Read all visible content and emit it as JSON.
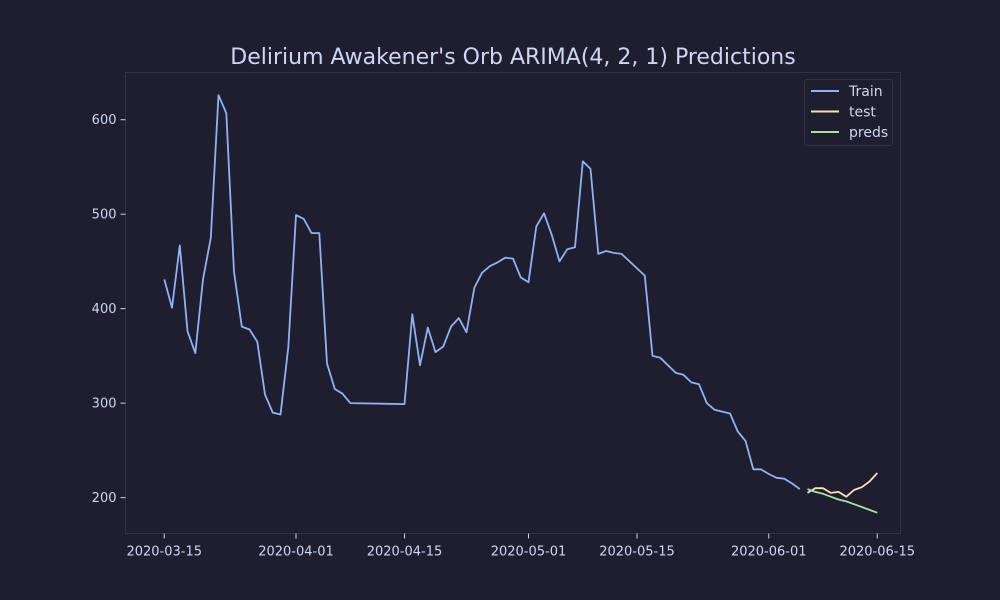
{
  "colors": {
    "background": "#1e1e2e",
    "frame": "#313244",
    "text": "#cdd6f4",
    "legend_bg": "#1e1e2e"
  },
  "chart_data": {
    "type": "line",
    "title": "Delirium Awakener's Orb ARIMA(4, 2, 1) Predictions",
    "xlabel": "",
    "ylabel": "",
    "x_axis": {
      "type": "date",
      "range": [
        "2020-03-10",
        "2020-06-18"
      ],
      "ticks": [
        "2020-03-15",
        "2020-04-01",
        "2020-04-15",
        "2020-05-01",
        "2020-05-15",
        "2020-06-01",
        "2020-06-15"
      ]
    },
    "y_axis": {
      "range": [
        162,
        650
      ],
      "ticks": [
        200,
        300,
        400,
        500,
        600
      ]
    },
    "grid": false,
    "legend_position": "top-right",
    "series": [
      {
        "name": "Train",
        "color": "#89b4fa",
        "points": [
          [
            "2020-03-15",
            431
          ],
          [
            "2020-03-16",
            401
          ],
          [
            "2020-03-17",
            467
          ],
          [
            "2020-03-18",
            376
          ],
          [
            "2020-03-19",
            353
          ],
          [
            "2020-03-20",
            431
          ],
          [
            "2020-03-21",
            475
          ],
          [
            "2020-03-22",
            626
          ],
          [
            "2020-03-23",
            607
          ],
          [
            "2020-03-24",
            439
          ],
          [
            "2020-03-25",
            381
          ],
          [
            "2020-03-26",
            378
          ],
          [
            "2020-03-27",
            365
          ],
          [
            "2020-03-28",
            309
          ],
          [
            "2020-03-29",
            290
          ],
          [
            "2020-03-30",
            288
          ],
          [
            "2020-03-31",
            359
          ],
          [
            "2020-04-01",
            499
          ],
          [
            "2020-04-02",
            495
          ],
          [
            "2020-04-03",
            480
          ],
          [
            "2020-04-04",
            480
          ],
          [
            "2020-04-05",
            342
          ],
          [
            "2020-04-06",
            315
          ],
          [
            "2020-04-07",
            310
          ],
          [
            "2020-04-08",
            300
          ],
          [
            "2020-04-15",
            299
          ],
          [
            "2020-04-16",
            394
          ],
          [
            "2020-04-17",
            340
          ],
          [
            "2020-04-18",
            380
          ],
          [
            "2020-04-19",
            354
          ],
          [
            "2020-04-20",
            360
          ],
          [
            "2020-04-21",
            381
          ],
          [
            "2020-04-22",
            390
          ],
          [
            "2020-04-23",
            375
          ],
          [
            "2020-04-24",
            422
          ],
          [
            "2020-04-25",
            438
          ],
          [
            "2020-04-26",
            445
          ],
          [
            "2020-04-27",
            449
          ],
          [
            "2020-04-28",
            454
          ],
          [
            "2020-04-29",
            453
          ],
          [
            "2020-04-30",
            433
          ],
          [
            "2020-05-01",
            428
          ],
          [
            "2020-05-02",
            487
          ],
          [
            "2020-05-03",
            501
          ],
          [
            "2020-05-04",
            478
          ],
          [
            "2020-05-05",
            450
          ],
          [
            "2020-05-06",
            463
          ],
          [
            "2020-05-07",
            465
          ],
          [
            "2020-05-08",
            556
          ],
          [
            "2020-05-09",
            548
          ],
          [
            "2020-05-10",
            458
          ],
          [
            "2020-05-11",
            461
          ],
          [
            "2020-05-12",
            459
          ],
          [
            "2020-05-13",
            458
          ],
          [
            "2020-05-16",
            435
          ],
          [
            "2020-05-17",
            350
          ],
          [
            "2020-05-18",
            348
          ],
          [
            "2020-05-19",
            340
          ],
          [
            "2020-05-20",
            332
          ],
          [
            "2020-05-21",
            330
          ],
          [
            "2020-05-22",
            322
          ],
          [
            "2020-05-23",
            320
          ],
          [
            "2020-05-24",
            300
          ],
          [
            "2020-05-25",
            293
          ],
          [
            "2020-05-26",
            291
          ],
          [
            "2020-05-27",
            289
          ],
          [
            "2020-05-28",
            270
          ],
          [
            "2020-05-29",
            260
          ],
          [
            "2020-05-30",
            230
          ],
          [
            "2020-05-31",
            230
          ],
          [
            "2020-06-01",
            225
          ],
          [
            "2020-06-02",
            221
          ],
          [
            "2020-06-03",
            220
          ],
          [
            "2020-06-04",
            215
          ],
          [
            "2020-06-05",
            209
          ]
        ]
      },
      {
        "name": "test",
        "color": "#f9e2af",
        "points": [
          [
            "2020-06-06",
            205
          ],
          [
            "2020-06-07",
            210
          ],
          [
            "2020-06-08",
            210
          ],
          [
            "2020-06-09",
            205
          ],
          [
            "2020-06-10",
            206
          ],
          [
            "2020-06-11",
            201
          ],
          [
            "2020-06-12",
            208
          ],
          [
            "2020-06-13",
            211
          ],
          [
            "2020-06-14",
            217
          ],
          [
            "2020-06-15",
            226
          ]
        ]
      },
      {
        "name": "preds",
        "color": "#a6e3a1",
        "points": [
          [
            "2020-06-06",
            209
          ],
          [
            "2020-06-07",
            206
          ],
          [
            "2020-06-08",
            204
          ],
          [
            "2020-06-09",
            201
          ],
          [
            "2020-06-10",
            198
          ],
          [
            "2020-06-11",
            196
          ],
          [
            "2020-06-12",
            193
          ],
          [
            "2020-06-13",
            190
          ],
          [
            "2020-06-14",
            187
          ],
          [
            "2020-06-15",
            184
          ]
        ]
      }
    ]
  }
}
